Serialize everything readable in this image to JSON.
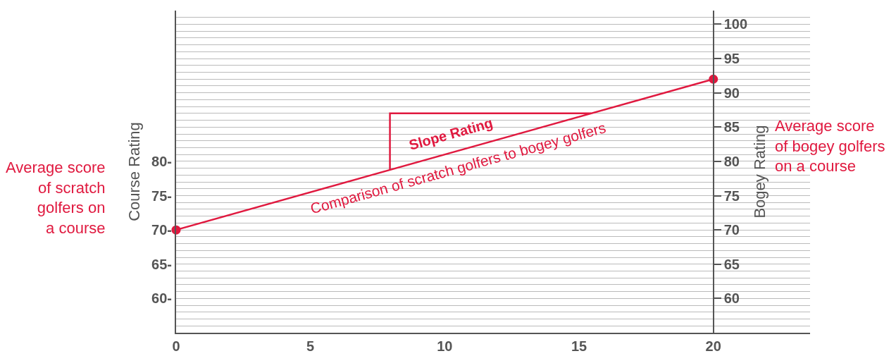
{
  "chart_data": {
    "type": "line",
    "ylabel": "Course Rating",
    "y2label": "Bogey Rating",
    "series": [
      {
        "color": "#e0193f",
        "x": [
          0,
          20
        ],
        "values": [
          70,
          92
        ],
        "marker": "circle"
      },
      {
        "color": "#e0193f",
        "x": [
          7.96,
          7.96,
          15.45
        ],
        "values": [
          78.8,
          87,
          87
        ],
        "marker": "none"
      }
    ],
    "xlim": [
      0,
      23.6
    ],
    "xticks": [
      0,
      5,
      10,
      15,
      20
    ],
    "ylim": [
      55,
      102
    ],
    "yticks": [
      {
        "value": 56,
        "label": null
      },
      {
        "value": 57,
        "label": null
      },
      {
        "value": 58,
        "label": null
      },
      {
        "value": 59,
        "label": null
      },
      {
        "value": 60,
        "label": "60-"
      },
      {
        "value": 61,
        "label": null
      },
      {
        "value": 62,
        "label": null
      },
      {
        "value": 63,
        "label": null
      },
      {
        "value": 64,
        "label": null
      },
      {
        "value": 65,
        "label": "65-"
      },
      {
        "value": 66,
        "label": null
      },
      {
        "value": 67,
        "label": null
      },
      {
        "value": 68,
        "label": null
      },
      {
        "value": 69,
        "label": null
      },
      {
        "value": 70,
        "label": "70-"
      },
      {
        "value": 71,
        "label": null
      },
      {
        "value": 72,
        "label": null
      },
      {
        "value": 73,
        "label": null
      },
      {
        "value": 74,
        "label": null
      },
      {
        "value": 75,
        "label": "75-"
      },
      {
        "value": 76,
        "label": null
      },
      {
        "value": 77,
        "label": null
      },
      {
        "value": 78,
        "label": null
      },
      {
        "value": 79,
        "label": null
      },
      {
        "value": 80,
        "label": "80-"
      },
      {
        "value": 81,
        "label": null
      },
      {
        "value": 82,
        "label": null
      },
      {
        "value": 83,
        "label": null
      },
      {
        "value": 84,
        "label": null
      },
      {
        "value": 85,
        "label": null
      },
      {
        "value": 86,
        "label": null
      },
      {
        "value": 87,
        "label": null
      },
      {
        "value": 88,
        "label": null
      },
      {
        "value": 89,
        "label": null
      },
      {
        "value": 90,
        "label": null
      },
      {
        "value": 91,
        "label": null
      },
      {
        "value": 92,
        "label": null
      },
      {
        "value": 93,
        "label": null
      },
      {
        "value": 94,
        "label": null
      },
      {
        "value": 95,
        "label": null
      },
      {
        "value": 96,
        "label": null
      },
      {
        "value": 97,
        "label": null
      },
      {
        "value": 98,
        "label": null
      },
      {
        "value": 99,
        "label": null
      },
      {
        "value": 100,
        "label": null
      },
      {
        "value": 101,
        "label": null
      }
    ],
    "y2lim": [
      55,
      102
    ],
    "y2ticks": [
      60,
      65,
      70,
      75,
      80,
      85,
      90,
      95,
      100
    ],
    "grid": "y",
    "line_style": "solid",
    "annotations": [
      "Slope Rating",
      "Comparison of scratch golfers to bogey golfers",
      "Average score\nof scratch\ngolfers on\na course",
      "Average score\nof bogey golfers\non a course"
    ]
  }
}
